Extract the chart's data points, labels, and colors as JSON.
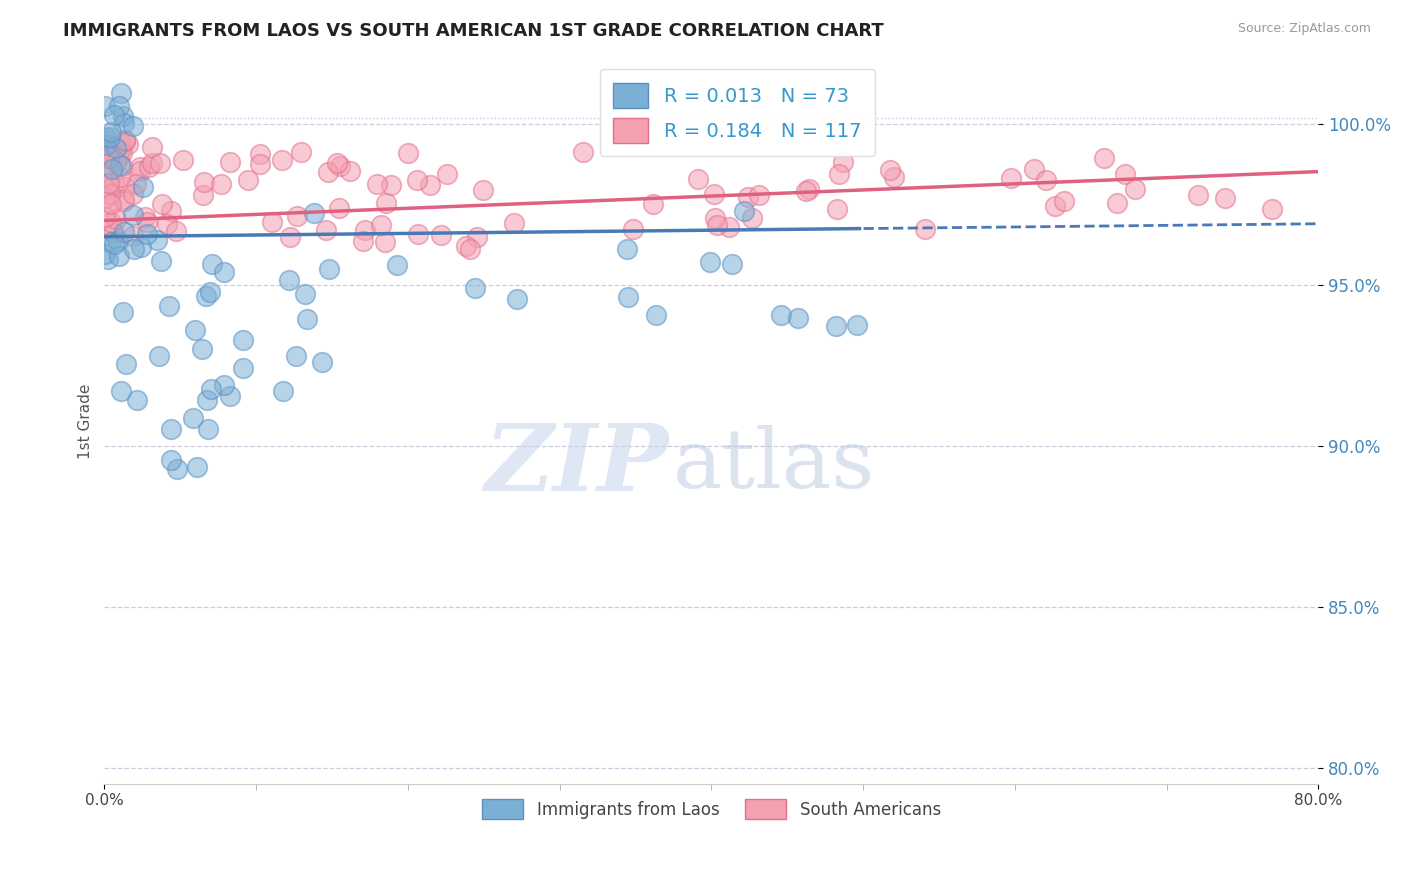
{
  "title": "IMMIGRANTS FROM LAOS VS SOUTH AMERICAN 1ST GRADE CORRELATION CHART",
  "source": "Source: ZipAtlas.com",
  "ylabel": "1st Grade",
  "xlim": [
    0.0,
    80.0
  ],
  "ylim": [
    79.5,
    102.0
  ],
  "yticks": [
    80.0,
    85.0,
    90.0,
    95.0,
    100.0
  ],
  "ytick_labels": [
    "80.0%",
    "85.0%",
    "90.0%",
    "95.0%",
    "100.0%"
  ],
  "xtick_positions": [
    0.0,
    80.0
  ],
  "xtick_labels": [
    "0.0%",
    "80.0%"
  ],
  "blue_color": "#7BAFD4",
  "pink_color": "#F4A0B0",
  "blue_edge_color": "#5B8FC4",
  "pink_edge_color": "#E07090",
  "blue_line_color": "#4A7AB5",
  "pink_line_color": "#E06080",
  "grid_color": "#C8C8DC",
  "R_blue": 0.013,
  "N_blue": 73,
  "R_pink": 0.184,
  "N_pink": 117,
  "legend_label_blue": "Immigrants from Laos",
  "legend_label_pink": "South Americans",
  "background_color": "#FFFFFF",
  "blue_solid_end_x": 50.0,
  "dashed_start_x": 50.0,
  "dashed_end_x": 80.0,
  "watermark_zip_color": "#C8D8EC",
  "watermark_atlas_color": "#B8C8E0",
  "tick_label_color": "#4488BB",
  "legend_text_color": "#3399CC"
}
